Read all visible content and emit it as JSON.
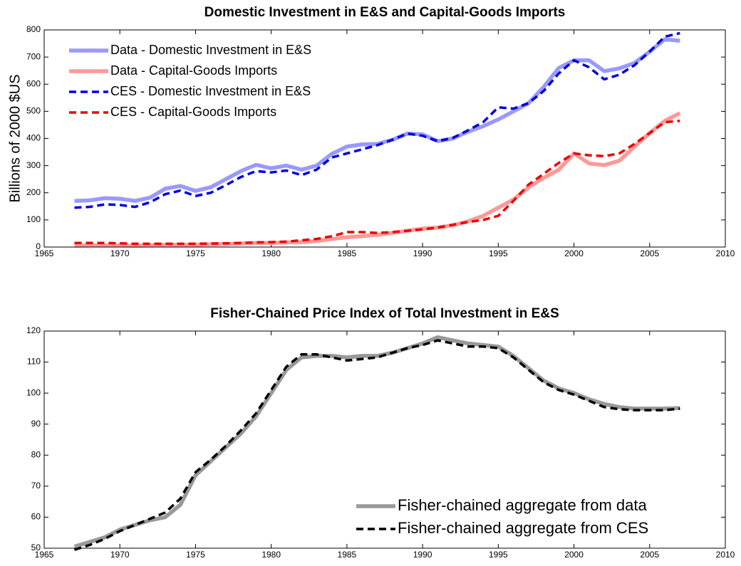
{
  "chart_data": [
    {
      "type": "line",
      "title": "Domestic Investment in E&S and Capital-Goods Imports",
      "y_label": "Billions of 2000 $US",
      "x": [
        1967,
        1968,
        1969,
        1970,
        1971,
        1972,
        1973,
        1974,
        1975,
        1976,
        1977,
        1978,
        1979,
        1980,
        1981,
        1982,
        1983,
        1984,
        1985,
        1986,
        1987,
        1988,
        1989,
        1990,
        1991,
        1992,
        1993,
        1994,
        1995,
        1996,
        1997,
        1998,
        1999,
        2000,
        2001,
        2002,
        2003,
        2004,
        2005,
        2006,
        2007
      ],
      "xlim": [
        1965,
        2010
      ],
      "xticks": [
        1965,
        1970,
        1975,
        1980,
        1985,
        1990,
        1995,
        2000,
        2005,
        2010
      ],
      "ylim": [
        0,
        800
      ],
      "yticks": [
        0,
        100,
        200,
        300,
        400,
        500,
        600,
        700,
        800
      ],
      "legend": "upper left",
      "series": [
        {
          "name": "Data - Domestic Investment in E&S",
          "color": "#9999ff",
          "style": "solid",
          "values": [
            170,
            172,
            180,
            178,
            170,
            182,
            215,
            225,
            207,
            220,
            250,
            280,
            303,
            290,
            300,
            285,
            300,
            343,
            370,
            378,
            380,
            395,
            418,
            415,
            390,
            400,
            425,
            445,
            470,
            500,
            530,
            590,
            660,
            688,
            688,
            648,
            658,
            678,
            720,
            765,
            760
          ]
        },
        {
          "name": "Data - Capital-Goods Imports",
          "color": "#ff9999",
          "style": "solid",
          "values": [
            5,
            6,
            6,
            6,
            5,
            6,
            8,
            8,
            8,
            10,
            11,
            13,
            15,
            15,
            17,
            18,
            22,
            30,
            36,
            40,
            45,
            52,
            60,
            68,
            72,
            80,
            95,
            115,
            145,
            175,
            220,
            255,
            285,
            345,
            308,
            302,
            318,
            370,
            420,
            465,
            493
          ]
        },
        {
          "name": "CES - Domestic Investment in E&S",
          "color": "#0000dd",
          "style": "dashed",
          "values": [
            145,
            148,
            157,
            155,
            148,
            165,
            195,
            208,
            188,
            200,
            228,
            258,
            280,
            275,
            282,
            265,
            285,
            330,
            345,
            360,
            375,
            395,
            418,
            410,
            390,
            402,
            430,
            460,
            515,
            510,
            530,
            575,
            640,
            688,
            662,
            618,
            635,
            670,
            720,
            775,
            788
          ]
        },
        {
          "name": "CES - Capital-Goods Imports",
          "color": "#ee0000",
          "style": "dashed",
          "values": [
            15,
            15,
            15,
            14,
            12,
            12,
            12,
            12,
            12,
            13,
            14,
            15,
            17,
            18,
            20,
            25,
            30,
            40,
            55,
            55,
            52,
            55,
            60,
            65,
            72,
            82,
            92,
            100,
            115,
            170,
            230,
            270,
            310,
            345,
            338,
            335,
            345,
            380,
            420,
            460,
            465
          ]
        }
      ]
    },
    {
      "type": "line",
      "title": "Fisher-Chained Price Index of Total Investment in E&S",
      "x": [
        1967,
        1968,
        1969,
        1970,
        1971,
        1972,
        1973,
        1974,
        1975,
        1976,
        1977,
        1978,
        1979,
        1980,
        1981,
        1982,
        1983,
        1984,
        1985,
        1986,
        1987,
        1988,
        1989,
        1990,
        1991,
        1992,
        1993,
        1994,
        1995,
        1996,
        1997,
        1998,
        1999,
        2000,
        2001,
        2002,
        2003,
        2004,
        2005,
        2006,
        2007
      ],
      "xlim": [
        1965,
        2010
      ],
      "xticks": [
        1965,
        1970,
        1975,
        1980,
        1985,
        1990,
        1995,
        2000,
        2005,
        2010
      ],
      "ylim": [
        50,
        120
      ],
      "yticks": [
        50,
        60,
        70,
        80,
        90,
        100,
        110,
        120
      ],
      "legend": "lower right",
      "series": [
        {
          "name": "Fisher-chained aggregate from data",
          "color": "#999999",
          "style": "solid",
          "values": [
            50.5,
            52,
            53.5,
            56,
            57.5,
            59,
            60,
            64,
            73.5,
            78,
            82.5,
            87,
            92.5,
            100,
            107.5,
            111.5,
            112,
            112,
            111.5,
            112,
            112,
            113,
            114.5,
            116,
            118,
            117,
            116,
            115.5,
            115,
            112,
            108,
            104,
            101.5,
            100,
            98,
            96.5,
            95.5,
            95,
            95,
            95,
            95.2
          ]
        },
        {
          "name": "Fisher-chained aggregate from CES",
          "color": "#000000",
          "style": "dashed",
          "values": [
            49.5,
            51,
            53,
            55.5,
            57.5,
            59.5,
            61.5,
            66,
            74.5,
            78.5,
            83,
            88,
            93.5,
            101,
            108.5,
            112.5,
            112.5,
            111.5,
            110.5,
            111,
            111.5,
            113,
            114.5,
            115.5,
            117,
            116,
            115,
            115,
            114.5,
            111.5,
            107.5,
            103.5,
            101,
            99.5,
            97.5,
            95.5,
            94.8,
            94.5,
            94.5,
            94.5,
            95
          ]
        }
      ]
    }
  ]
}
